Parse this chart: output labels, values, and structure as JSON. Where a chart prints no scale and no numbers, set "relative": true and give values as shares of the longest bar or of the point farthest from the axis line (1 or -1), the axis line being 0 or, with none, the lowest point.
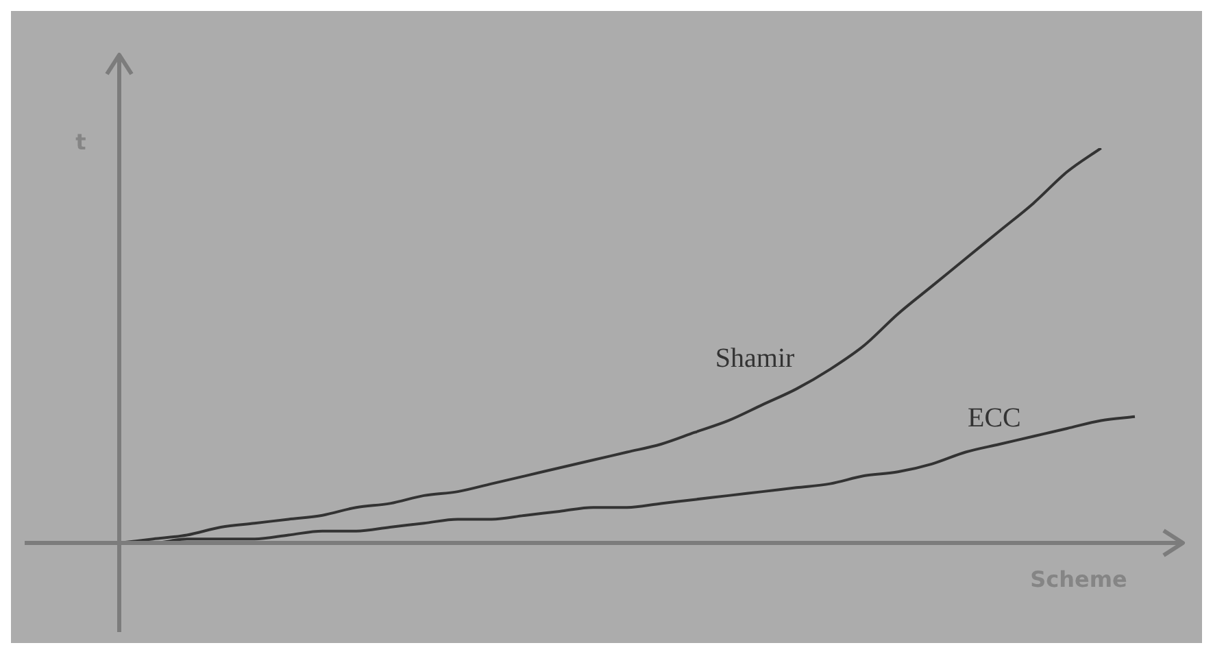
{
  "chart_data": {
    "type": "line",
    "relative": true,
    "xlabel": "Scheme",
    "ylabel": "t",
    "categories": [
      null,
      null,
      null,
      null,
      null,
      null,
      null,
      null,
      null,
      null,
      null,
      null,
      null,
      null,
      null,
      null,
      null,
      null,
      null,
      null,
      null,
      null,
      null,
      null,
      null,
      null,
      null,
      null,
      null,
      null,
      null
    ],
    "series": [
      {
        "name": "Shamir",
        "color": "#333333",
        "values": [
          0,
          0.01,
          0.02,
          0.04,
          0.05,
          0.06,
          0.07,
          0.09,
          0.1,
          0.12,
          0.13,
          0.15,
          0.17,
          0.19,
          0.21,
          0.23,
          0.25,
          0.28,
          0.31,
          0.35,
          0.39,
          0.44,
          0.5,
          0.58,
          0.65,
          0.72,
          0.79,
          0.86,
          0.94,
          1,
          null
        ]
      },
      {
        "name": "ECC",
        "color": "#333333",
        "values": [
          0,
          0,
          0.01,
          0.01,
          0.01,
          0.02,
          0.03,
          0.03,
          0.04,
          0.05,
          0.06,
          0.06,
          0.07,
          0.08,
          0.09,
          0.09,
          0.1,
          0.11,
          0.12,
          0.13,
          0.14,
          0.15,
          0.17,
          0.18,
          0.2,
          0.23,
          0.25,
          0.27,
          0.29,
          0.31,
          0.32
        ]
      }
    ]
  }
}
